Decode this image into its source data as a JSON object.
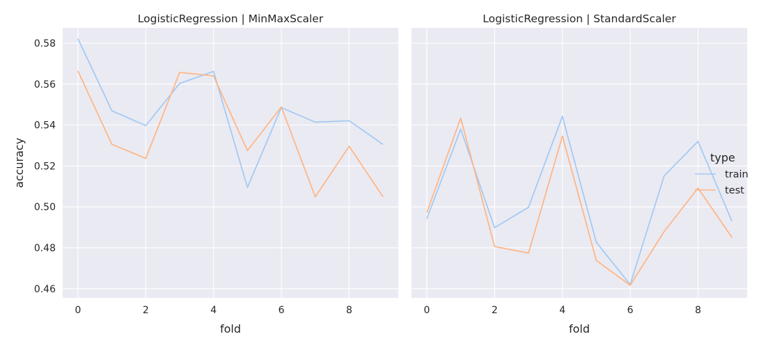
{
  "chart_data": [
    {
      "type": "line",
      "title": "LogisticRegression | MinMaxScaler",
      "xlabel": "fold",
      "ylabel": "accuracy",
      "xlim": [
        -0.45,
        9.45
      ],
      "ylim": [
        0.4555,
        0.5875
      ],
      "xticks": [
        "0",
        "2",
        "4",
        "6",
        "8"
      ],
      "yticks": [
        "0.46",
        "0.48",
        "0.50",
        "0.52",
        "0.54",
        "0.56",
        "0.58"
      ],
      "grid": true,
      "x": [
        0,
        1,
        2,
        3,
        4,
        5,
        6,
        7,
        8,
        9
      ],
      "series": [
        {
          "name": "train",
          "color": "#a1c9f4",
          "values": [
            0.5822,
            0.547,
            0.5397,
            0.5603,
            0.5662,
            0.5095,
            0.5485,
            0.5414,
            0.5421,
            0.5305
          ]
        },
        {
          "name": "test",
          "color": "#ffb482",
          "values": [
            0.5664,
            0.5306,
            0.5237,
            0.5657,
            0.564,
            0.5275,
            0.5488,
            0.5049,
            0.5296,
            0.5049
          ]
        }
      ]
    },
    {
      "type": "line",
      "title": "LogisticRegression | StandardScaler",
      "xlabel": "fold",
      "ylabel": "",
      "xlim": [
        -0.45,
        9.45
      ],
      "ylim": [
        0.4555,
        0.5875
      ],
      "xticks": [
        "0",
        "2",
        "4",
        "6",
        "8"
      ],
      "yticks": [],
      "grid": true,
      "x": [
        0,
        1,
        2,
        3,
        4,
        5,
        6,
        7,
        8,
        9
      ],
      "series": [
        {
          "name": "train",
          "color": "#a1c9f4",
          "values": [
            0.4942,
            0.538,
            0.4898,
            0.4998,
            0.5442,
            0.4827,
            0.462,
            0.5151,
            0.532,
            0.493
          ]
        },
        {
          "name": "test",
          "color": "#ffb482",
          "values": [
            0.4972,
            0.5434,
            0.4806,
            0.4774,
            0.5346,
            0.4738,
            0.4617,
            0.4879,
            0.5092,
            0.485
          ]
        }
      ]
    }
  ],
  "legend": {
    "title": "type",
    "placement": "right",
    "items": [
      {
        "label": "train",
        "color": "#a1c9f4"
      },
      {
        "label": "test",
        "color": "#ffb482"
      }
    ]
  },
  "style": {
    "plot_background": "#eaeaf2",
    "grid_color": "#ffffff",
    "text_color": "#262626"
  }
}
